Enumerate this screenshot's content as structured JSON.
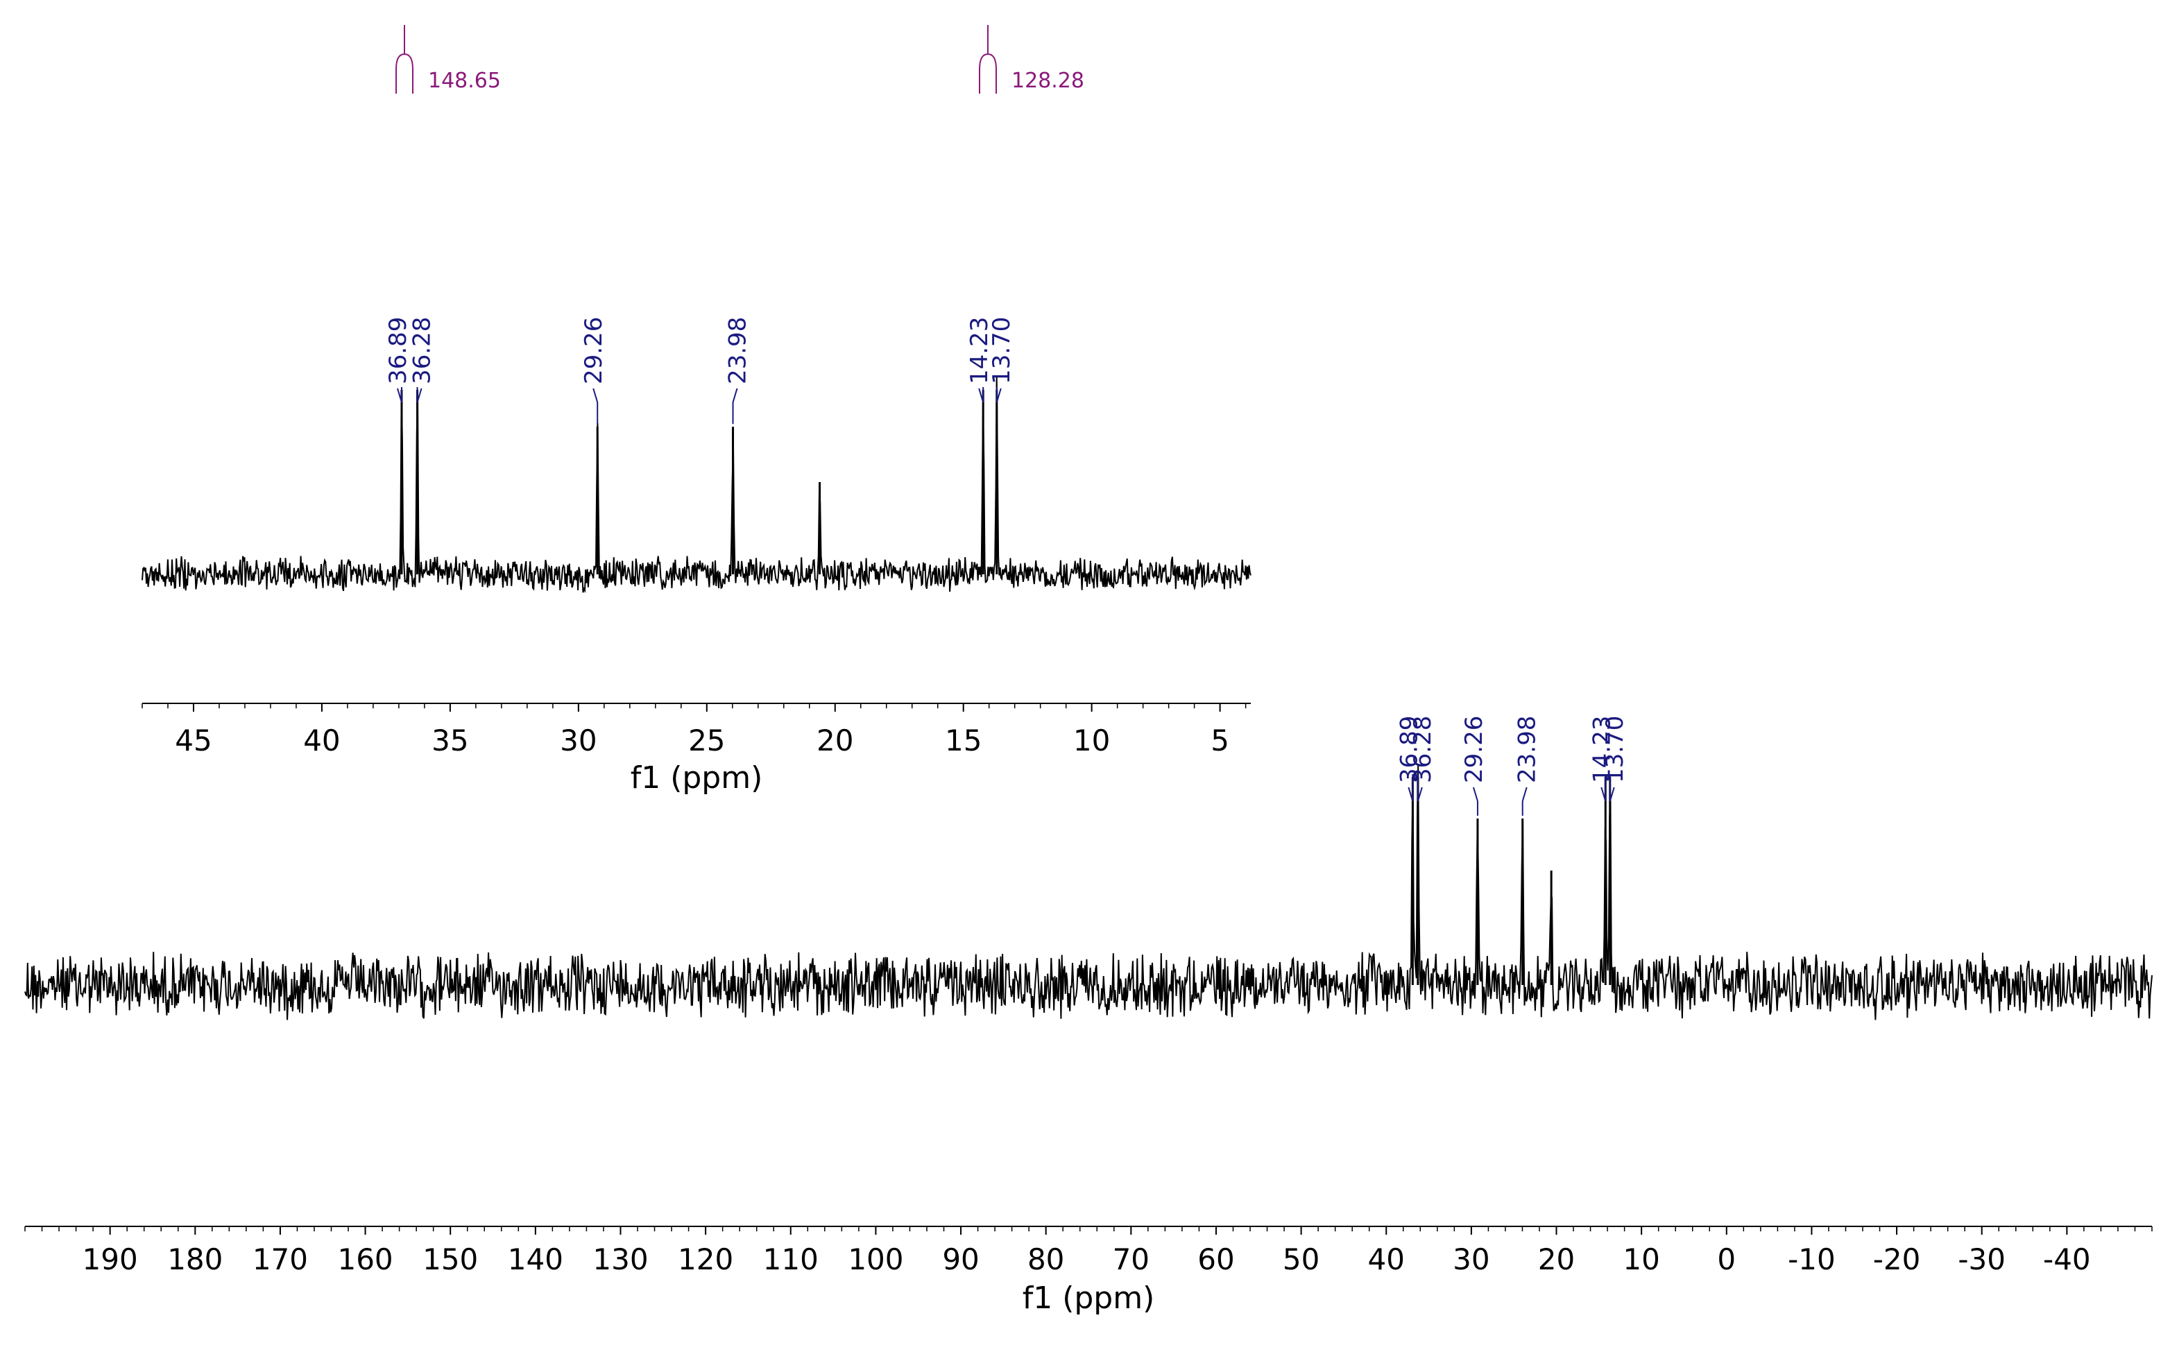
{
  "chart_data": [
    {
      "type": "line",
      "name": "main-spectrum",
      "xlabel": "f1 (ppm)",
      "xlim": [
        200,
        -50
      ],
      "reversed_x": true,
      "ticks": [
        190,
        180,
        170,
        160,
        150,
        140,
        130,
        120,
        110,
        100,
        90,
        80,
        70,
        60,
        50,
        40,
        30,
        20,
        10,
        0,
        -10,
        -20,
        -30,
        -40
      ],
      "tick_labels": [
        "190",
        "180",
        "170",
        "160",
        "150",
        "140",
        "130",
        "120",
        "110",
        "100",
        "90",
        "80",
        "70",
        "60",
        "50",
        "40",
        "30",
        "20",
        "10",
        "0",
        "-10",
        "-20",
        "-30",
        "-40"
      ],
      "peaks": [
        {
          "ppm": 36.89,
          "label": "36.89",
          "intensity": 1.0
        },
        {
          "ppm": 36.28,
          "label": "36.28",
          "intensity": 1.0
        },
        {
          "ppm": 29.26,
          "label": "29.26",
          "intensity": 0.8
        },
        {
          "ppm": 23.98,
          "label": "23.98",
          "intensity": 0.8
        },
        {
          "ppm": 20.6,
          "label": "",
          "intensity": 0.55
        },
        {
          "ppm": 14.23,
          "label": "14.23",
          "intensity": 1.0
        },
        {
          "ppm": 13.7,
          "label": "13.70",
          "intensity": 1.0
        }
      ],
      "noise_level": 0.35,
      "grid": false
    },
    {
      "type": "line",
      "name": "inset-spectrum",
      "xlabel": "f1 (ppm)",
      "xlim": [
        47,
        3.8
      ],
      "reversed_x": true,
      "ticks": [
        45,
        40,
        35,
        30,
        25,
        20,
        15,
        10,
        5
      ],
      "tick_labels": [
        "45",
        "40",
        "35",
        "30",
        "25",
        "20",
        "15",
        "10",
        "5"
      ],
      "peaks": [
        {
          "ppm": 36.89,
          "label": "36.89",
          "intensity": 1.0
        },
        {
          "ppm": 36.28,
          "label": "36.28",
          "intensity": 1.0
        },
        {
          "ppm": 29.26,
          "label": "29.26",
          "intensity": 0.8
        },
        {
          "ppm": 23.98,
          "label": "23.98",
          "intensity": 0.8
        },
        {
          "ppm": 20.6,
          "label": "",
          "intensity": 0.5
        },
        {
          "ppm": 14.23,
          "label": "14.23",
          "intensity": 1.0
        },
        {
          "ppm": 13.7,
          "label": "13.70",
          "intensity": 1.0
        }
      ],
      "noise_level": 0.3,
      "grid": false
    }
  ],
  "integrals": [
    {
      "ppm": 148.65,
      "label": "148.65"
    },
    {
      "ppm": 128.28,
      "label": "128.28"
    }
  ],
  "colors": {
    "trace": "#000000",
    "peak_label": "#1a1a80",
    "integral_label": "#8b1a7a"
  }
}
